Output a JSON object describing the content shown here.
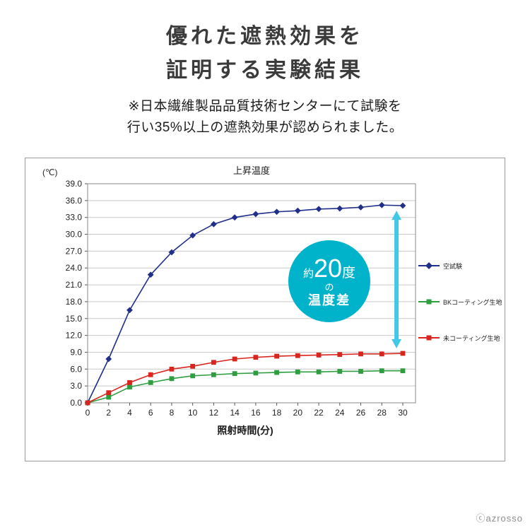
{
  "header": {
    "title_line1": "優れた遮熱効果を",
    "title_line2": "証明する実験結果",
    "note_line1": "※日本繊維製品品質技術センターにて試験を",
    "note_line2": "行い35%以上の遮熱効果が認められました。"
  },
  "annotation": {
    "prefix": "約",
    "value": "20",
    "unit": "度",
    "particle": "の",
    "label": "温度差",
    "background_color": "#00b2ca"
  },
  "footer": {
    "copyright": "ⓒazrosso"
  },
  "chart_data": {
    "type": "line",
    "title": "上昇温度",
    "y_unit_label": "(℃)",
    "xlabel": "照射時間(分)",
    "x": [
      0,
      2,
      4,
      6,
      8,
      10,
      12,
      14,
      16,
      18,
      20,
      22,
      24,
      26,
      28,
      30
    ],
    "xlim": [
      0,
      30
    ],
    "ylim": [
      0,
      39
    ],
    "ytick_step": 3.0,
    "grid": "horizontal",
    "legend_position": "right",
    "series": [
      {
        "name": "空試験",
        "color": "#1f2f8a",
        "marker": "diamond",
        "values": [
          0,
          7.8,
          16.5,
          22.8,
          26.8,
          29.8,
          31.8,
          33.0,
          33.6,
          34.0,
          34.2,
          34.5,
          34.6,
          34.8,
          35.2,
          35.1
        ]
      },
      {
        "name": "BKコーティング生地",
        "color": "#2f9e41",
        "marker": "square",
        "values": [
          0,
          1.0,
          2.8,
          3.6,
          4.3,
          4.8,
          5.0,
          5.2,
          5.3,
          5.4,
          5.5,
          5.5,
          5.6,
          5.6,
          5.7,
          5.7
        ]
      },
      {
        "name": "未コーティング生地",
        "color": "#d9251d",
        "marker": "square",
        "values": [
          0,
          1.8,
          3.6,
          5.0,
          6.0,
          6.5,
          7.2,
          7.8,
          8.1,
          8.3,
          8.4,
          8.5,
          8.6,
          8.7,
          8.7,
          8.8
        ]
      }
    ],
    "difference_arrow": {
      "x": 29.4,
      "top_value": 34.2,
      "bottom_value": 9.7,
      "color": "#41c8e6"
    }
  }
}
